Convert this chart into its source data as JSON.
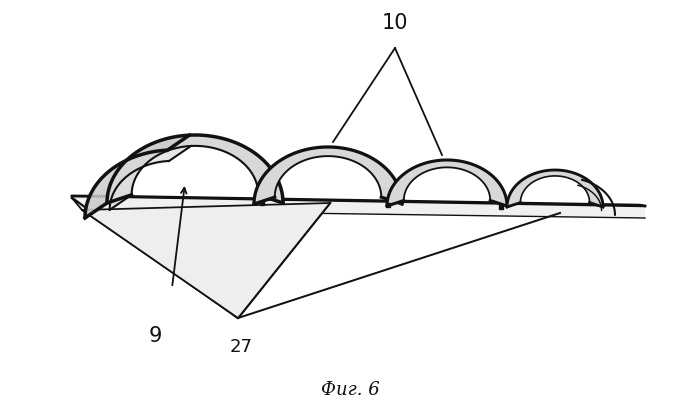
{
  "title": "Фиг. 6",
  "label_9": "9",
  "label_10": "10",
  "label_27": "27",
  "bg_color": "#ffffff",
  "line_color": "#111111",
  "fig_width": 7.0,
  "fig_height": 4.18,
  "dpi": 100,
  "arch_outer_lw": 2.5,
  "arch_inner_lw": 1.5,
  "base_lw": 1.8
}
